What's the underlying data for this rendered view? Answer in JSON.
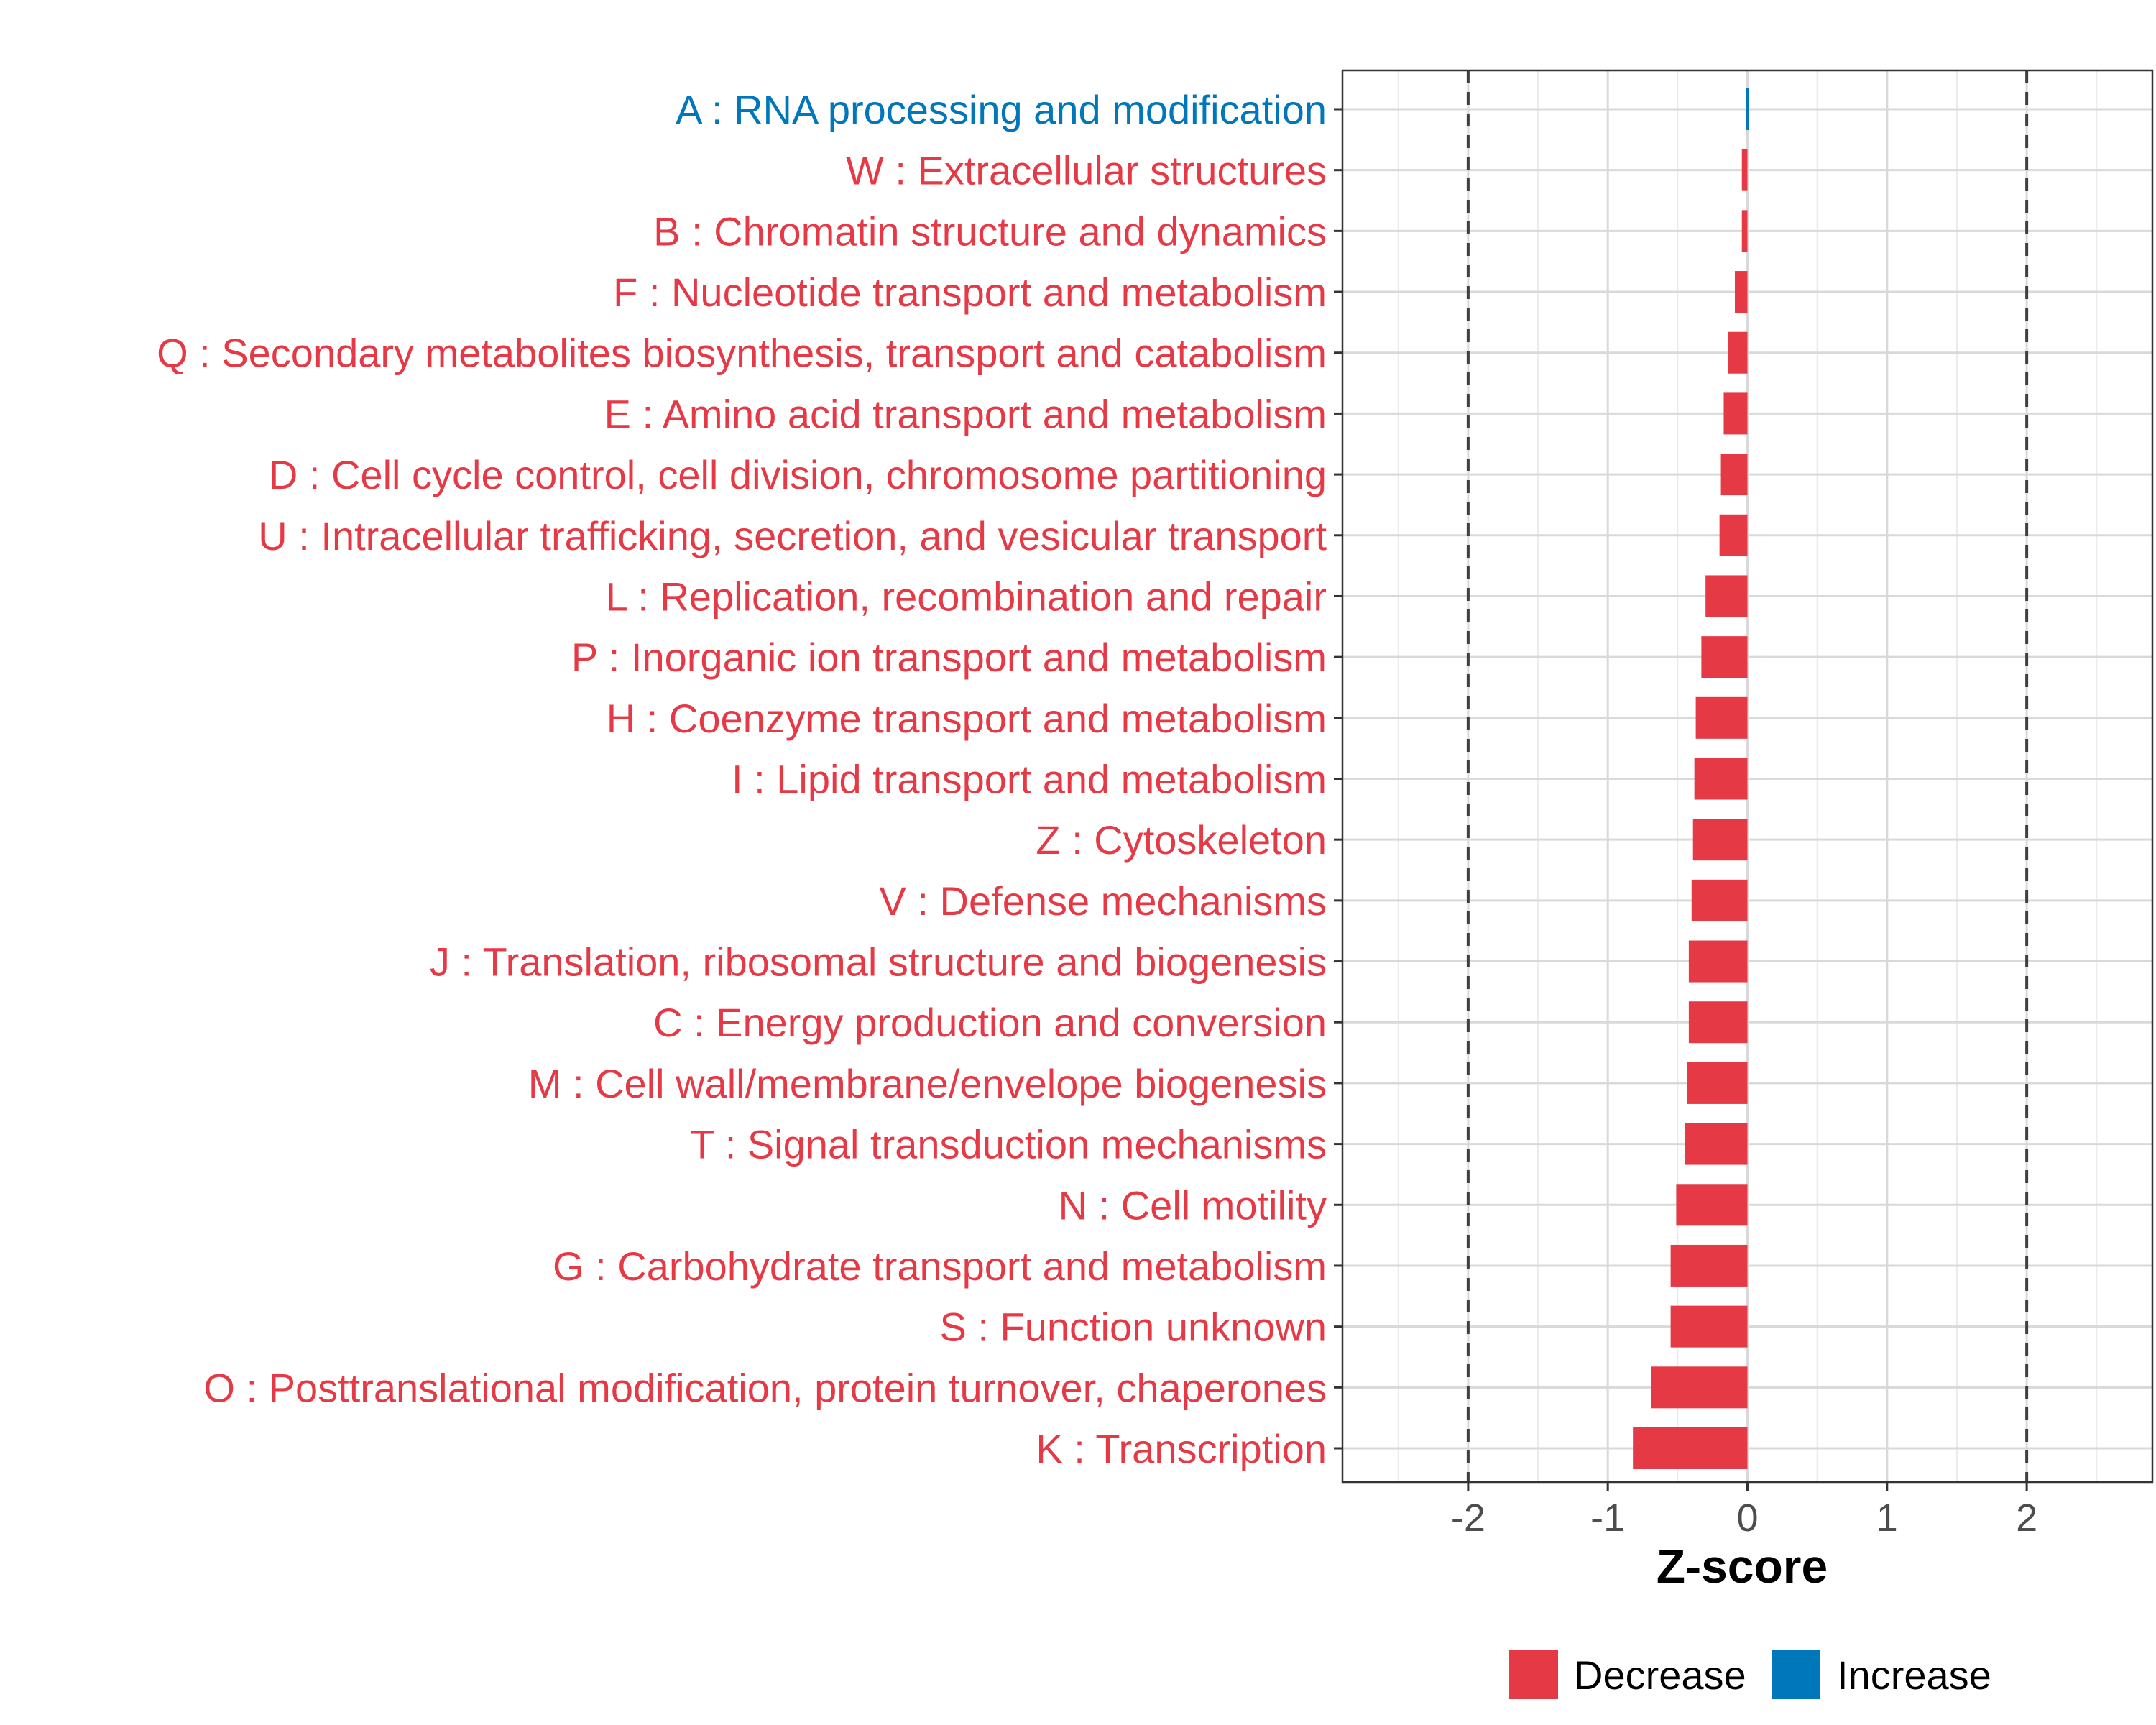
{
  "chart_data": {
    "type": "bar",
    "orientation": "horizontal",
    "xlabel": "Z-score",
    "xlim": [
      -2.9,
      2.9
    ],
    "xticks": [
      -2,
      -1,
      0,
      1,
      2
    ],
    "xtick_labels": [
      "-2",
      "-1",
      "0",
      "1",
      "2"
    ],
    "reference_lines": [
      -2,
      2
    ],
    "grid": true,
    "legend_position": "bottom",
    "colors": {
      "Decrease": "#e63946",
      "Increase": "#0077bb"
    },
    "categories": [
      "A : RNA processing and modification",
      "W : Extracellular structures",
      "B : Chromatin structure and dynamics",
      "F : Nucleotide transport and metabolism",
      "Q : Secondary metabolites biosynthesis, transport and catabolism",
      "E : Amino acid transport and metabolism",
      "D : Cell cycle control, cell division, chromosome partitioning",
      "U : Intracellular trafficking, secretion, and vesicular transport",
      "L : Replication, recombination and repair",
      "P : Inorganic ion transport and metabolism",
      "H : Coenzyme transport and metabolism",
      "I : Lipid transport and metabolism",
      "Z : Cytoskeleton",
      "V : Defense mechanisms",
      "J : Translation, ribosomal structure and biogenesis",
      "C : Energy production and conversion",
      "M : Cell wall/membrane/envelope biogenesis",
      "T : Signal transduction mechanisms",
      "N : Cell motility",
      "G : Carbohydrate transport and metabolism",
      "S : Function unknown",
      "O : Posttranslational modification, protein turnover, chaperones",
      "K : Transcription"
    ],
    "values": [
      0.01,
      -0.04,
      -0.04,
      -0.09,
      -0.14,
      -0.17,
      -0.19,
      -0.2,
      -0.3,
      -0.33,
      -0.37,
      -0.38,
      -0.39,
      -0.4,
      -0.42,
      -0.42,
      -0.43,
      -0.45,
      -0.51,
      -0.55,
      -0.55,
      -0.69,
      -0.82
    ],
    "groups": [
      "Increase",
      "Decrease",
      "Decrease",
      "Decrease",
      "Decrease",
      "Decrease",
      "Decrease",
      "Decrease",
      "Decrease",
      "Decrease",
      "Decrease",
      "Decrease",
      "Decrease",
      "Decrease",
      "Decrease",
      "Decrease",
      "Decrease",
      "Decrease",
      "Decrease",
      "Decrease",
      "Decrease",
      "Decrease",
      "Decrease"
    ],
    "legend": [
      "Decrease",
      "Increase"
    ]
  }
}
